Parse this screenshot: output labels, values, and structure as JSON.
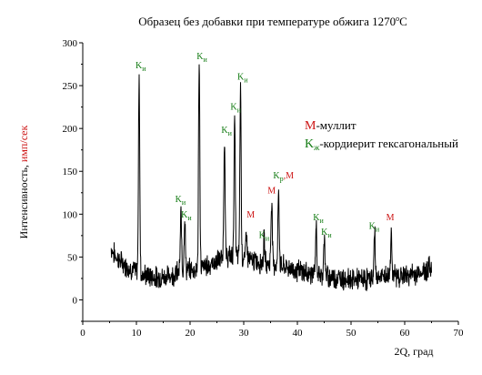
{
  "chart_data": {
    "type": "line",
    "title": "Образец без добавки при температуре обжига 1270",
    "title_superscript": "o",
    "title_unit": "C",
    "xlabel": "2Q, град",
    "ylabel_main": "Интенсивность, ",
    "ylabel_unit": "имп/сек",
    "xlim": [
      0,
      70
    ],
    "ylim": [
      -25,
      300
    ],
    "x_ticks": [
      "0",
      "10",
      "20",
      "30",
      "40",
      "50",
      "60",
      "70"
    ],
    "y_ticks": [
      "0",
      "50",
      "100",
      "150",
      "200",
      "250",
      "300"
    ],
    "x_tick_values": [
      0,
      10,
      20,
      30,
      40,
      50,
      60,
      70
    ],
    "y_tick_values": [
      0,
      50,
      100,
      150,
      200,
      250,
      300
    ],
    "line_color": "#000000",
    "baseline": [
      [
        5.3,
        60
      ],
      [
        6,
        52
      ],
      [
        7,
        45
      ],
      [
        8,
        40
      ],
      [
        9,
        36
      ],
      [
        10,
        33
      ],
      [
        11,
        30
      ],
      [
        12,
        28
      ],
      [
        13,
        27
      ],
      [
        14,
        26
      ],
      [
        15,
        27
      ],
      [
        16,
        28
      ],
      [
        17,
        30
      ],
      [
        18,
        33
      ],
      [
        19,
        34
      ],
      [
        20,
        35
      ],
      [
        21,
        36
      ],
      [
        22,
        38
      ],
      [
        23,
        40
      ],
      [
        24,
        42
      ],
      [
        25,
        45
      ],
      [
        26,
        48
      ],
      [
        27,
        50
      ],
      [
        28,
        51
      ],
      [
        29,
        50
      ],
      [
        30,
        48
      ],
      [
        31,
        46
      ],
      [
        32,
        45
      ],
      [
        33,
        44
      ],
      [
        34,
        43
      ],
      [
        35,
        42
      ],
      [
        36,
        41
      ],
      [
        37,
        40
      ],
      [
        38,
        38
      ],
      [
        39,
        36
      ],
      [
        40,
        34
      ],
      [
        41,
        33
      ],
      [
        42,
        31
      ],
      [
        43,
        30
      ],
      [
        44,
        29
      ],
      [
        45,
        28
      ],
      [
        46,
        27
      ],
      [
        47,
        26
      ],
      [
        48,
        25
      ],
      [
        49,
        25
      ],
      [
        50,
        24
      ],
      [
        51,
        24
      ],
      [
        52,
        24
      ],
      [
        53,
        24
      ],
      [
        54,
        25
      ],
      [
        55,
        26
      ],
      [
        56,
        27
      ],
      [
        57,
        28
      ],
      [
        58,
        28
      ],
      [
        59,
        28
      ],
      [
        60,
        28
      ],
      [
        61,
        29
      ],
      [
        62,
        30
      ],
      [
        63,
        32
      ],
      [
        64,
        35
      ],
      [
        65,
        40
      ]
    ],
    "peaks": [
      {
        "x": 10.5,
        "y": 268
      },
      {
        "x": 18.3,
        "y": 100
      },
      {
        "x": 19.0,
        "y": 95
      },
      {
        "x": 21.7,
        "y": 275
      },
      {
        "x": 26.4,
        "y": 190
      },
      {
        "x": 28.3,
        "y": 210
      },
      {
        "x": 29.4,
        "y": 250
      },
      {
        "x": 30.5,
        "y": 82
      },
      {
        "x": 33.8,
        "y": 70
      },
      {
        "x": 35.2,
        "y": 118
      },
      {
        "x": 36.5,
        "y": 130
      },
      {
        "x": 43.5,
        "y": 86
      },
      {
        "x": 45.0,
        "y": 73
      },
      {
        "x": 54.4,
        "y": 80
      },
      {
        "x": 57.5,
        "y": 82
      }
    ],
    "peak_labels": [
      {
        "x": 10.8,
        "y": 270,
        "phase": "K",
        "sub": "и"
      },
      {
        "x": 18.2,
        "y": 114,
        "phase": "K",
        "sub": "и"
      },
      {
        "x": 19.3,
        "y": 96,
        "phase": "K",
        "sub": "и"
      },
      {
        "x": 22.2,
        "y": 281,
        "phase": "K",
        "sub": "и"
      },
      {
        "x": 26.8,
        "y": 195,
        "phase": "K",
        "sub": "и"
      },
      {
        "x": 28.5,
        "y": 222,
        "phase": "K",
        "sub": "и"
      },
      {
        "x": 29.8,
        "y": 257,
        "phase": "K",
        "sub": "и"
      },
      {
        "x": 31.3,
        "y": 96,
        "phase": "M",
        "sub": ""
      },
      {
        "x": 33.8,
        "y": 72,
        "phase": "K",
        "sub": "и"
      },
      {
        "x": 35.2,
        "y": 124,
        "phase": "M",
        "sub": ""
      },
      {
        "x": 37.4,
        "y": 142,
        "phase": "K",
        "sub": "р",
        "extra": ",M"
      },
      {
        "x": 43.9,
        "y": 93,
        "phase": "K",
        "sub": "и"
      },
      {
        "x": 45.4,
        "y": 76,
        "phase": "K",
        "sub": "и"
      },
      {
        "x": 54.3,
        "y": 83,
        "phase": "K",
        "sub": "и"
      },
      {
        "x": 57.3,
        "y": 93,
        "phase": "M",
        "sub": ""
      }
    ],
    "legend": [
      {
        "letter": "M",
        "sub": "",
        "text": "-муллит",
        "color": "#cc1111"
      },
      {
        "letter": "K",
        "sub": "ж",
        "text": "-кордиерит гексагональный",
        "color": "#117a11"
      }
    ],
    "legend_placement": "top-right",
    "grid": false
  }
}
